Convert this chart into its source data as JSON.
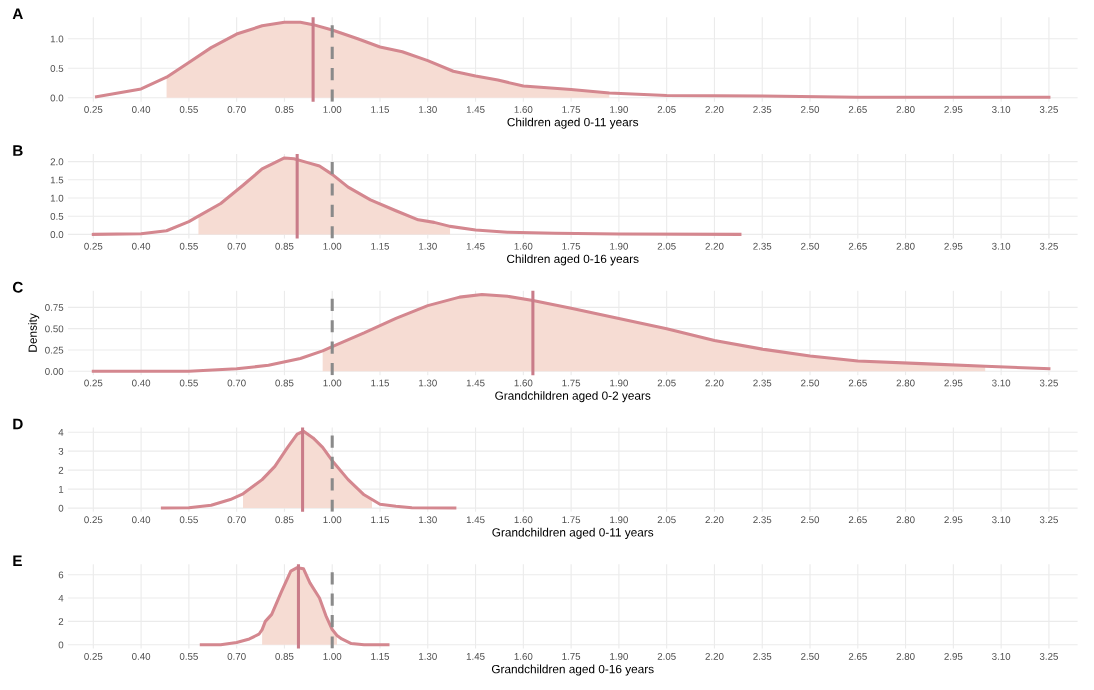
{
  "chart_data": [
    {
      "type": "line",
      "title": "A",
      "xlabel": "Children aged 0-11 years",
      "xlim": [
        0.17,
        3.34
      ],
      "ylim": [
        -0.065,
        1.365
      ],
      "xticks": [
        {
          "value": 0.25,
          "label": "0.25"
        },
        {
          "value": 0.4,
          "label": "0.40"
        },
        {
          "value": 0.55,
          "label": "0.55"
        },
        {
          "value": 0.7,
          "label": "0.70"
        },
        {
          "value": 0.85,
          "label": "0.85"
        },
        {
          "value": 1.0,
          "label": "1.00"
        },
        {
          "value": 1.15,
          "label": "1.15"
        },
        {
          "value": 1.3,
          "label": "1.30"
        },
        {
          "value": 1.45,
          "label": "1.45"
        },
        {
          "value": 1.6,
          "label": "1.60"
        },
        {
          "value": 1.75,
          "label": "1.75"
        },
        {
          "value": 1.9,
          "label": "1.90"
        },
        {
          "value": 2.05,
          "label": "2.05"
        },
        {
          "value": 2.2,
          "label": "2.20"
        },
        {
          "value": 2.35,
          "label": "2.35"
        },
        {
          "value": 2.5,
          "label": "2.50"
        },
        {
          "value": 2.65,
          "label": "2.65"
        },
        {
          "value": 2.8,
          "label": "2.80"
        },
        {
          "value": 2.95,
          "label": "2.95"
        },
        {
          "value": 3.1,
          "label": "3.10"
        },
        {
          "value": 3.25,
          "label": "3.25"
        }
      ],
      "yticks": [
        {
          "value": 0,
          "label": "0.0"
        },
        {
          "value": 0.5,
          "label": "0.5"
        },
        {
          "value": 1.0,
          "label": "1.0"
        }
      ],
      "grid": true,
      "line_style": "solid",
      "series": [
        {
          "type": "area",
          "color": "#f6dcd3",
          "x": [
            0.48,
            0.55,
            0.62,
            0.7,
            0.78,
            0.85,
            0.9,
            0.94,
            1.0,
            1.08,
            1.15,
            1.22,
            1.3,
            1.38,
            1.45,
            1.52,
            1.6,
            1.75,
            1.87
          ],
          "values": [
            0.35,
            0.6,
            0.85,
            1.08,
            1.22,
            1.28,
            1.28,
            1.24,
            1.15,
            1.0,
            0.86,
            0.78,
            0.63,
            0.45,
            0.37,
            0.3,
            0.2,
            0.14,
            0.08
          ]
        },
        {
          "type": "line",
          "color": "#d4878f",
          "x": [
            0.26,
            0.4,
            0.48,
            0.55,
            0.62,
            0.7,
            0.78,
            0.85,
            0.9,
            0.94,
            1.0,
            1.08,
            1.15,
            1.22,
            1.3,
            1.38,
            1.45,
            1.52,
            1.6,
            1.75,
            1.87,
            2.05,
            2.35,
            2.65,
            2.95,
            3.25
          ],
          "values": [
            0.02,
            0.15,
            0.35,
            0.6,
            0.85,
            1.08,
            1.22,
            1.28,
            1.28,
            1.24,
            1.15,
            1.0,
            0.86,
            0.78,
            0.63,
            0.45,
            0.37,
            0.3,
            0.2,
            0.14,
            0.08,
            0.04,
            0.03,
            0.01,
            0.01,
            0.01
          ]
        }
      ],
      "ref_lines": [
        {
          "axis": "x",
          "value": 0.94,
          "color": "#c97c89",
          "line_style": "solid"
        },
        {
          "axis": "x",
          "value": 1.0,
          "color": "#8a8a8a",
          "line_style": "dashed"
        }
      ]
    },
    {
      "type": "line",
      "title": "B",
      "xlabel": "Children aged 0-16 years",
      "xlim": [
        0.17,
        3.34
      ],
      "ylim": [
        -0.11,
        2.21
      ],
      "xticks": [
        {
          "value": 0.25,
          "label": "0.25"
        },
        {
          "value": 0.4,
          "label": "0.40"
        },
        {
          "value": 0.55,
          "label": "0.55"
        },
        {
          "value": 0.7,
          "label": "0.70"
        },
        {
          "value": 0.85,
          "label": "0.85"
        },
        {
          "value": 1.0,
          "label": "1.00"
        },
        {
          "value": 1.15,
          "label": "1.15"
        },
        {
          "value": 1.3,
          "label": "1.30"
        },
        {
          "value": 1.45,
          "label": "1.45"
        },
        {
          "value": 1.6,
          "label": "1.60"
        },
        {
          "value": 1.75,
          "label": "1.75"
        },
        {
          "value": 1.9,
          "label": "1.90"
        },
        {
          "value": 2.05,
          "label": "2.05"
        },
        {
          "value": 2.2,
          "label": "2.20"
        },
        {
          "value": 2.35,
          "label": "2.35"
        },
        {
          "value": 2.5,
          "label": "2.50"
        },
        {
          "value": 2.65,
          "label": "2.65"
        },
        {
          "value": 2.8,
          "label": "2.80"
        },
        {
          "value": 2.95,
          "label": "2.95"
        },
        {
          "value": 3.1,
          "label": "3.10"
        },
        {
          "value": 3.25,
          "label": "3.25"
        }
      ],
      "yticks": [
        {
          "value": 0,
          "label": "0.0"
        },
        {
          "value": 0.5,
          "label": "0.5"
        },
        {
          "value": 1.0,
          "label": "1.0"
        },
        {
          "value": 1.5,
          "label": "1.5"
        },
        {
          "value": 2.0,
          "label": "2.0"
        }
      ],
      "grid": true,
      "line_style": "solid",
      "series": [
        {
          "type": "area",
          "color": "#f6dcd3",
          "x": [
            0.58,
            0.65,
            0.72,
            0.78,
            0.85,
            0.88,
            0.92,
            0.96,
            1.0,
            1.05,
            1.12,
            1.2,
            1.27,
            1.32,
            1.37
          ],
          "values": [
            0.5,
            0.85,
            1.35,
            1.8,
            2.1,
            2.08,
            1.98,
            1.88,
            1.65,
            1.3,
            0.95,
            0.65,
            0.4,
            0.33,
            0.22
          ]
        },
        {
          "type": "line",
          "color": "#d4878f",
          "x": [
            0.25,
            0.4,
            0.48,
            0.55,
            0.58,
            0.65,
            0.72,
            0.78,
            0.85,
            0.88,
            0.92,
            0.96,
            1.0,
            1.05,
            1.12,
            1.2,
            1.27,
            1.32,
            1.37,
            1.45,
            1.55,
            1.7,
            1.9,
            2.28
          ],
          "values": [
            0.0,
            0.02,
            0.1,
            0.35,
            0.5,
            0.85,
            1.35,
            1.8,
            2.1,
            2.08,
            1.98,
            1.88,
            1.65,
            1.3,
            0.95,
            0.65,
            0.4,
            0.33,
            0.22,
            0.12,
            0.06,
            0.03,
            0.01,
            0.0
          ]
        }
      ],
      "ref_lines": [
        {
          "axis": "x",
          "value": 0.89,
          "color": "#c97c89",
          "line_style": "solid"
        },
        {
          "axis": "x",
          "value": 1.0,
          "color": "#8a8a8a",
          "line_style": "dashed"
        }
      ]
    },
    {
      "type": "line",
      "title": "C",
      "xlabel": "Grandchildren aged 0-2 years",
      "ylabel": "Density",
      "xlim": [
        0.17,
        3.34
      ],
      "ylim": [
        -0.045,
        0.945
      ],
      "xticks": [
        {
          "value": 0.25,
          "label": "0.25"
        },
        {
          "value": 0.4,
          "label": "0.40"
        },
        {
          "value": 0.55,
          "label": "0.55"
        },
        {
          "value": 0.7,
          "label": "0.70"
        },
        {
          "value": 0.85,
          "label": "0.85"
        },
        {
          "value": 1.0,
          "label": "1.00"
        },
        {
          "value": 1.15,
          "label": "1.15"
        },
        {
          "value": 1.3,
          "label": "1.30"
        },
        {
          "value": 1.45,
          "label": "1.45"
        },
        {
          "value": 1.6,
          "label": "1.60"
        },
        {
          "value": 1.75,
          "label": "1.75"
        },
        {
          "value": 1.9,
          "label": "1.90"
        },
        {
          "value": 2.05,
          "label": "2.05"
        },
        {
          "value": 2.2,
          "label": "2.20"
        },
        {
          "value": 2.35,
          "label": "2.35"
        },
        {
          "value": 2.5,
          "label": "2.50"
        },
        {
          "value": 2.65,
          "label": "2.65"
        },
        {
          "value": 2.8,
          "label": "2.80"
        },
        {
          "value": 2.95,
          "label": "2.95"
        },
        {
          "value": 3.1,
          "label": "3.10"
        },
        {
          "value": 3.25,
          "label": "3.25"
        }
      ],
      "yticks": [
        {
          "value": 0,
          "label": "0.00"
        },
        {
          "value": 0.25,
          "label": "0.25"
        },
        {
          "value": 0.5,
          "label": "0.50"
        },
        {
          "value": 0.75,
          "label": "0.75"
        }
      ],
      "grid": true,
      "line_style": "solid",
      "series": [
        {
          "type": "area",
          "color": "#f6dcd3",
          "x": [
            0.97,
            1.0,
            1.1,
            1.2,
            1.3,
            1.4,
            1.47,
            1.55,
            1.63,
            1.75,
            1.9,
            2.05,
            2.2,
            2.35,
            2.5,
            2.65,
            2.85,
            3.05
          ],
          "values": [
            0.24,
            0.29,
            0.45,
            0.62,
            0.77,
            0.87,
            0.9,
            0.88,
            0.83,
            0.74,
            0.62,
            0.5,
            0.36,
            0.26,
            0.18,
            0.12,
            0.09,
            0.06
          ]
        },
        {
          "type": "line",
          "color": "#d4878f",
          "x": [
            0.25,
            0.55,
            0.7,
            0.8,
            0.9,
            0.97,
            1.0,
            1.1,
            1.2,
            1.3,
            1.4,
            1.47,
            1.55,
            1.63,
            1.75,
            1.9,
            2.05,
            2.2,
            2.35,
            2.5,
            2.65,
            2.85,
            3.05,
            3.25
          ],
          "values": [
            0.0,
            0.0,
            0.03,
            0.07,
            0.15,
            0.24,
            0.29,
            0.45,
            0.62,
            0.77,
            0.87,
            0.9,
            0.88,
            0.83,
            0.74,
            0.62,
            0.5,
            0.36,
            0.26,
            0.18,
            0.12,
            0.09,
            0.06,
            0.03
          ]
        }
      ],
      "ref_lines": [
        {
          "axis": "x",
          "value": 1.63,
          "color": "#c97c89",
          "line_style": "solid"
        },
        {
          "axis": "x",
          "value": 1.0,
          "color": "#8a8a8a",
          "line_style": "dashed"
        }
      ]
    },
    {
      "type": "line",
      "title": "D",
      "xlabel": "Grandchildren aged 0-11 years",
      "xlim": [
        0.17,
        3.34
      ],
      "ylim": [
        -0.2,
        4.25
      ],
      "xticks": [
        {
          "value": 0.25,
          "label": "0.25"
        },
        {
          "value": 0.4,
          "label": "0.40"
        },
        {
          "value": 0.55,
          "label": "0.55"
        },
        {
          "value": 0.7,
          "label": "0.70"
        },
        {
          "value": 0.85,
          "label": "0.85"
        },
        {
          "value": 1.0,
          "label": "1.00"
        },
        {
          "value": 1.15,
          "label": "1.15"
        },
        {
          "value": 1.3,
          "label": "1.30"
        },
        {
          "value": 1.45,
          "label": "1.45"
        },
        {
          "value": 1.6,
          "label": "1.60"
        },
        {
          "value": 1.75,
          "label": "1.75"
        },
        {
          "value": 1.9,
          "label": "1.90"
        },
        {
          "value": 2.05,
          "label": "2.05"
        },
        {
          "value": 2.2,
          "label": "2.20"
        },
        {
          "value": 2.35,
          "label": "2.35"
        },
        {
          "value": 2.5,
          "label": "2.50"
        },
        {
          "value": 2.65,
          "label": "2.65"
        },
        {
          "value": 2.8,
          "label": "2.80"
        },
        {
          "value": 2.95,
          "label": "2.95"
        },
        {
          "value": 3.1,
          "label": "3.10"
        },
        {
          "value": 3.25,
          "label": "3.25"
        }
      ],
      "yticks": [
        0,
        1,
        2,
        3,
        4
      ],
      "grid": true,
      "line_style": "solid",
      "series": [
        {
          "type": "area",
          "color": "#f6dcd3",
          "x": [
            0.72,
            0.78,
            0.82,
            0.86,
            0.89,
            0.91,
            0.94,
            0.97,
            1.0,
            1.05,
            1.1,
            1.125
          ],
          "values": [
            0.75,
            1.5,
            2.2,
            3.2,
            3.9,
            4.05,
            3.7,
            3.2,
            2.5,
            1.5,
            0.7,
            0.45
          ]
        },
        {
          "type": "line",
          "color": "#d4878f",
          "x": [
            0.467,
            0.55,
            0.62,
            0.68,
            0.72,
            0.78,
            0.82,
            0.86,
            0.89,
            0.91,
            0.94,
            0.97,
            1.0,
            1.05,
            1.1,
            1.125,
            1.15,
            1.2,
            1.25,
            1.385
          ],
          "values": [
            0.0,
            0.02,
            0.15,
            0.45,
            0.75,
            1.5,
            2.2,
            3.2,
            3.9,
            4.05,
            3.7,
            3.2,
            2.5,
            1.5,
            0.7,
            0.45,
            0.2,
            0.1,
            0.02,
            0.0
          ]
        }
      ],
      "ref_lines": [
        {
          "axis": "x",
          "value": 0.907,
          "color": "#c97c89",
          "line_style": "solid"
        },
        {
          "axis": "x",
          "value": 1.0,
          "color": "#8a8a8a",
          "line_style": "dashed"
        }
      ]
    },
    {
      "type": "line",
      "title": "E",
      "xlabel": "Grandchildren aged 0-16 years",
      "xlim": [
        0.17,
        3.34
      ],
      "ylim": [
        -0.33,
        6.9
      ],
      "xticks": [
        {
          "value": 0.25,
          "label": "0.25"
        },
        {
          "value": 0.4,
          "label": "0.40"
        },
        {
          "value": 0.55,
          "label": "0.55"
        },
        {
          "value": 0.7,
          "label": "0.70"
        },
        {
          "value": 0.85,
          "label": "0.85"
        },
        {
          "value": 1.0,
          "label": "1.00"
        },
        {
          "value": 1.15,
          "label": "1.15"
        },
        {
          "value": 1.3,
          "label": "1.30"
        },
        {
          "value": 1.45,
          "label": "1.45"
        },
        {
          "value": 1.6,
          "label": "1.60"
        },
        {
          "value": 1.75,
          "label": "1.75"
        },
        {
          "value": 1.9,
          "label": "1.90"
        },
        {
          "value": 2.05,
          "label": "2.05"
        },
        {
          "value": 2.2,
          "label": "2.20"
        },
        {
          "value": 2.35,
          "label": "2.35"
        },
        {
          "value": 2.5,
          "label": "2.50"
        },
        {
          "value": 2.65,
          "label": "2.65"
        },
        {
          "value": 2.8,
          "label": "2.80"
        },
        {
          "value": 2.95,
          "label": "2.95"
        },
        {
          "value": 3.1,
          "label": "3.10"
        },
        {
          "value": 3.25,
          "label": "3.25"
        }
      ],
      "yticks": [
        0,
        2,
        4,
        6
      ],
      "grid": true,
      "line_style": "solid",
      "series": [
        {
          "type": "area",
          "color": "#f6dcd3",
          "x": [
            0.78,
            0.79,
            0.81,
            0.84,
            0.87,
            0.89,
            0.91,
            0.93,
            0.96,
            0.98,
            1.0,
            1.015
          ],
          "values": [
            1.3,
            2.0,
            2.6,
            4.5,
            6.3,
            6.6,
            6.5,
            5.3,
            4.0,
            2.5,
            1.3,
            0.8
          ]
        },
        {
          "type": "line",
          "color": "#d4878f",
          "x": [
            0.589,
            0.65,
            0.7,
            0.74,
            0.77,
            0.78,
            0.79,
            0.81,
            0.84,
            0.87,
            0.89,
            0.91,
            0.93,
            0.96,
            0.98,
            1.0,
            1.015,
            1.03,
            1.06,
            1.1,
            1.175
          ],
          "values": [
            0.0,
            0.0,
            0.2,
            0.5,
            0.9,
            1.3,
            2.0,
            2.6,
            4.5,
            6.3,
            6.6,
            6.5,
            5.3,
            4.0,
            2.5,
            1.3,
            0.8,
            0.5,
            0.1,
            0.0,
            0.0
          ]
        }
      ],
      "ref_lines": [
        {
          "axis": "x",
          "value": 0.894,
          "color": "#c97c89",
          "line_style": "solid"
        },
        {
          "axis": "x",
          "value": 1.0,
          "color": "#8a8a8a",
          "line_style": "dashed"
        }
      ]
    }
  ]
}
